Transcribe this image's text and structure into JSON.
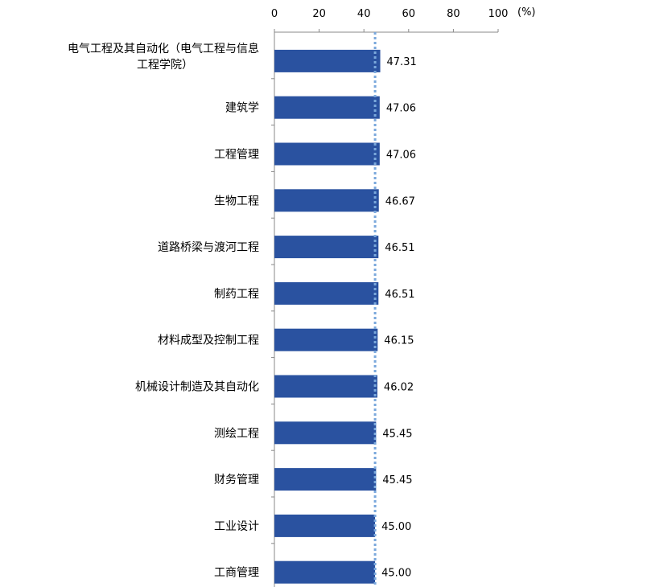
{
  "chart_data": {
    "type": "bar",
    "orientation": "horizontal",
    "x_axis_position": "top",
    "unit_label": "(%)",
    "xlim": [
      0,
      100
    ],
    "xticks": [
      0,
      20,
      40,
      60,
      80,
      100
    ],
    "categories": [
      "电气工程及其自动化（电气工程与信息工程学院）",
      "建筑学",
      "工程管理",
      "生物工程",
      "道路桥梁与渡河工程",
      "制药工程",
      "材料成型及控制工程",
      "机械设计制造及其自动化",
      "测绘工程",
      "财务管理",
      "工业设计",
      "工商管理"
    ],
    "category_lines": [
      [
        "电气工程及其自动化（电气工程与信息",
        "工程学院）"
      ],
      [
        "建筑学"
      ],
      [
        "工程管理"
      ],
      [
        "生物工程"
      ],
      [
        "道路桥梁与渡河工程"
      ],
      [
        "制药工程"
      ],
      [
        "材料成型及控制工程"
      ],
      [
        "机械设计制造及其自动化"
      ],
      [
        "测绘工程"
      ],
      [
        "财务管理"
      ],
      [
        "工业设计"
      ],
      [
        "工商管理"
      ]
    ],
    "values": [
      47.31,
      47.06,
      47.06,
      46.67,
      46.51,
      46.51,
      46.15,
      46.02,
      45.45,
      45.45,
      45.0,
      45.0
    ],
    "value_labels": [
      "47.31",
      "47.06",
      "47.06",
      "46.67",
      "46.51",
      "46.51",
      "46.15",
      "46.02",
      "45.45",
      "45.45",
      "45.00",
      "45.00"
    ],
    "reference_line": 45,
    "colors": {
      "bar": "#2a52a0",
      "reference_line": "#7aa8dc",
      "axis": "#888888"
    }
  }
}
